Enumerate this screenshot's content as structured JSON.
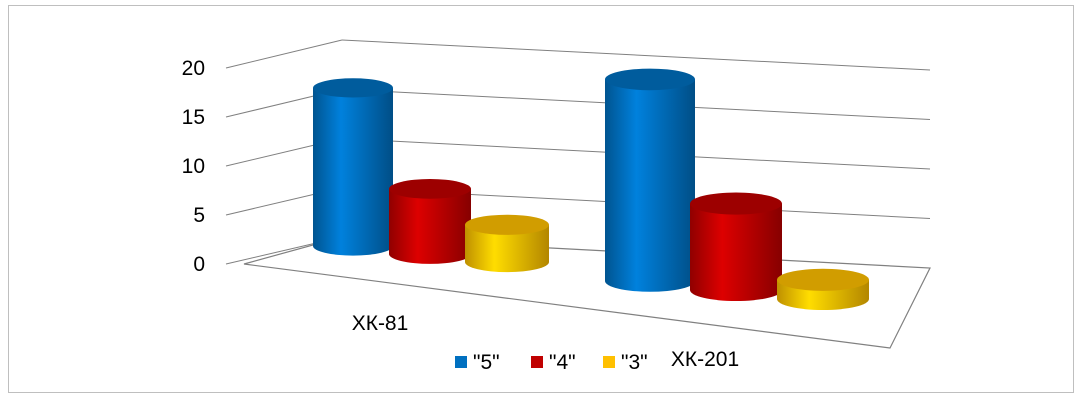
{
  "chart_data": {
    "type": "bar",
    "style": "3d-cylinder",
    "categories": [
      "ХК-81",
      "ХК-201"
    ],
    "series": [
      {
        "name": "\"5\"",
        "values": [
          17,
          21
        ],
        "color": "#0070c0"
      },
      {
        "name": "\"4\"",
        "values": [
          7,
          9
        ],
        "color": "#c00000"
      },
      {
        "name": "\"3\"",
        "values": [
          4,
          2
        ],
        "color": "#ffc000"
      }
    ],
    "y_ticks": [
      "0",
      "5",
      "10",
      "15",
      "20"
    ],
    "ylim": [
      0,
      20
    ],
    "grid": true,
    "legend_position": "bottom"
  }
}
